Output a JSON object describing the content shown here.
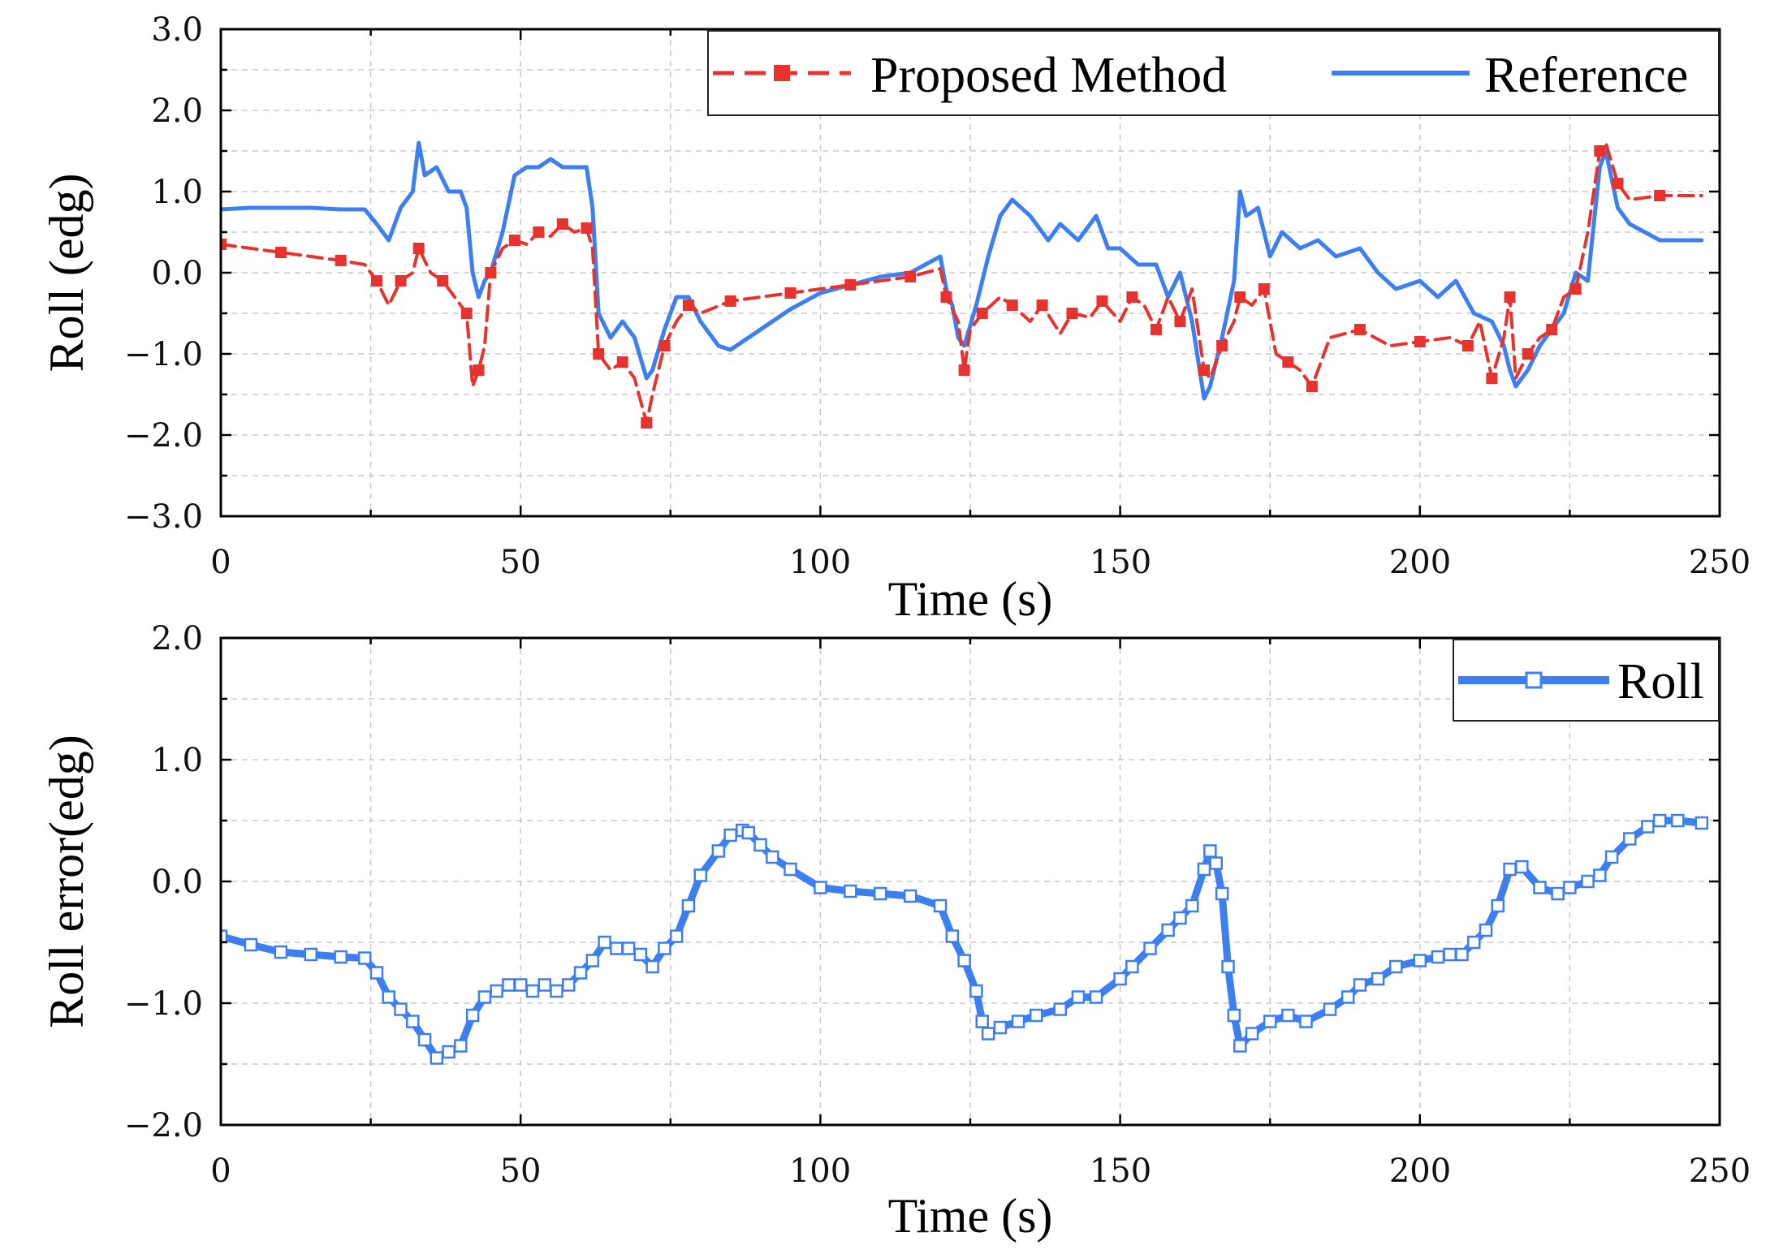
{
  "chart_data": [
    {
      "type": "line",
      "xlabel": "Time (s)",
      "ylabel": "Roll (edg)",
      "xlim": [
        0,
        250
      ],
      "ylim": [
        -3,
        3
      ],
      "xticks": [
        0,
        50,
        100,
        150,
        200,
        250
      ],
      "xtick_labels": [
        "0",
        "50",
        "100",
        "150",
        "200",
        "250"
      ],
      "yticks": [
        3,
        2,
        1,
        0,
        -1,
        -2,
        -3
      ],
      "ytick_labels": [
        "3.0",
        "2.0",
        "1.0",
        "0.0",
        "−1.0",
        "−2.0",
        "−3.0"
      ],
      "grid": true,
      "legend_position": "top-right",
      "series": [
        {
          "name": "Proposed Method",
          "style": "dashed-square-marker",
          "color": "#e8322d",
          "x": [
            0,
            5,
            10,
            15,
            20,
            24,
            26,
            28,
            30,
            32,
            33,
            35,
            37,
            39,
            41,
            42,
            43,
            44,
            45,
            47,
            49,
            51,
            53,
            55,
            57,
            59,
            61,
            62,
            63,
            65,
            67,
            69,
            71,
            72,
            74,
            76,
            78,
            80,
            85,
            90,
            95,
            100,
            105,
            110,
            115,
            120,
            121,
            123,
            124,
            125,
            127,
            130,
            132,
            135,
            137,
            140,
            142,
            145,
            147,
            150,
            152,
            154,
            156,
            158,
            160,
            162,
            164,
            165,
            167,
            169,
            170,
            172,
            174,
            176,
            178,
            180,
            182,
            185,
            190,
            195,
            200,
            205,
            208,
            210,
            212,
            214,
            215,
            216,
            218,
            220,
            222,
            224,
            226,
            228,
            230,
            231,
            233,
            235,
            240,
            247
          ],
          "y": [
            0.35,
            0.3,
            0.25,
            0.2,
            0.15,
            0.1,
            -0.1,
            -0.4,
            -0.1,
            0.0,
            0.3,
            0.0,
            -0.1,
            -0.3,
            -0.5,
            -1.4,
            -1.2,
            -0.9,
            0.0,
            0.3,
            0.4,
            0.35,
            0.5,
            0.45,
            0.6,
            0.5,
            0.55,
            0.3,
            -1.0,
            -1.2,
            -1.1,
            -1.3,
            -1.85,
            -1.5,
            -0.9,
            -0.6,
            -0.4,
            -0.5,
            -0.35,
            -0.3,
            -0.25,
            -0.2,
            -0.15,
            -0.1,
            -0.05,
            0.05,
            -0.3,
            -0.6,
            -1.2,
            -0.7,
            -0.5,
            -0.3,
            -0.4,
            -0.6,
            -0.4,
            -0.75,
            -0.5,
            -0.55,
            -0.35,
            -0.6,
            -0.3,
            -0.4,
            -0.7,
            -0.3,
            -0.6,
            -0.2,
            -1.2,
            -1.3,
            -0.9,
            -0.6,
            -0.3,
            -0.4,
            -0.2,
            -1.0,
            -1.1,
            -1.2,
            -1.4,
            -0.8,
            -0.7,
            -0.9,
            -0.85,
            -0.8,
            -0.9,
            -0.6,
            -1.3,
            -0.8,
            -0.3,
            -1.3,
            -1.0,
            -0.8,
            -0.7,
            -0.3,
            -0.2,
            0.5,
            1.5,
            1.6,
            1.1,
            0.9,
            0.95,
            0.95
          ]
        },
        {
          "name": "Reference",
          "style": "solid",
          "color": "#3d7ef0",
          "x": [
            0,
            5,
            10,
            15,
            20,
            24,
            26,
            28,
            30,
            32,
            33,
            34,
            36,
            38,
            40,
            41,
            42,
            43,
            44,
            45,
            47,
            49,
            51,
            53,
            55,
            57,
            59,
            61,
            62,
            63,
            65,
            67,
            69,
            71,
            72,
            74,
            76,
            78,
            80,
            83,
            85,
            90,
            95,
            100,
            105,
            110,
            115,
            120,
            121,
            122,
            123,
            124,
            126,
            128,
            130,
            132,
            135,
            138,
            140,
            143,
            146,
            148,
            150,
            153,
            156,
            158,
            160,
            162,
            164,
            165,
            167,
            169,
            170,
            171,
            173,
            175,
            177,
            180,
            183,
            186,
            190,
            193,
            196,
            200,
            203,
            206,
            209,
            212,
            214,
            215,
            216,
            218,
            220,
            222,
            224,
            226,
            228,
            230,
            231,
            233,
            235,
            240,
            247
          ],
          "y": [
            0.78,
            0.8,
            0.8,
            0.8,
            0.78,
            0.78,
            0.6,
            0.4,
            0.8,
            1.0,
            1.6,
            1.2,
            1.3,
            1.0,
            1.0,
            0.8,
            0.0,
            -0.3,
            -0.1,
            0.0,
            0.5,
            1.2,
            1.3,
            1.3,
            1.4,
            1.3,
            1.3,
            1.3,
            0.8,
            -0.5,
            -0.8,
            -0.6,
            -0.8,
            -1.3,
            -1.2,
            -0.7,
            -0.3,
            -0.3,
            -0.6,
            -0.9,
            -0.95,
            -0.7,
            -0.45,
            -0.25,
            -0.15,
            -0.05,
            0.0,
            0.2,
            -0.2,
            -0.4,
            -0.8,
            -0.9,
            -0.4,
            0.2,
            0.7,
            0.9,
            0.7,
            0.4,
            0.6,
            0.4,
            0.7,
            0.3,
            0.3,
            0.1,
            0.1,
            -0.3,
            0.0,
            -0.6,
            -1.55,
            -1.4,
            -0.8,
            -0.1,
            1.0,
            0.7,
            0.8,
            0.2,
            0.5,
            0.3,
            0.4,
            0.2,
            0.3,
            0.0,
            -0.2,
            -0.1,
            -0.3,
            -0.1,
            -0.5,
            -0.6,
            -0.9,
            -1.2,
            -1.4,
            -1.2,
            -0.9,
            -0.7,
            -0.5,
            0.0,
            -0.1,
            1.3,
            1.5,
            0.8,
            0.6,
            0.4,
            0.4
          ]
        }
      ]
    },
    {
      "type": "line",
      "xlabel": "Time (s)",
      "ylabel": "Roll error(edg)",
      "xlim": [
        0,
        250
      ],
      "ylim": [
        -2,
        2
      ],
      "xticks": [
        0,
        50,
        100,
        150,
        200,
        250
      ],
      "xtick_labels": [
        "0",
        "50",
        "100",
        "150",
        "200",
        "250"
      ],
      "yticks": [
        2,
        1,
        0,
        -1,
        -2
      ],
      "ytick_labels": [
        "2.0",
        "1.0",
        "0.0",
        "−1.0",
        "−2.0"
      ],
      "grid": true,
      "legend_position": "top-right",
      "series": [
        {
          "name": "Roll",
          "style": "solid-open-square-marker",
          "color": "#3d7ef0",
          "x": [
            0,
            5,
            10,
            15,
            20,
            24,
            26,
            28,
            30,
            32,
            34,
            36,
            38,
            40,
            42,
            44,
            46,
            48,
            50,
            52,
            54,
            56,
            58,
            60,
            62,
            64,
            66,
            68,
            70,
            72,
            74,
            76,
            78,
            80,
            83,
            85,
            87,
            88,
            90,
            92,
            95,
            100,
            105,
            110,
            115,
            120,
            122,
            124,
            126,
            127,
            128,
            130,
            133,
            136,
            140,
            143,
            146,
            150,
            152,
            155,
            158,
            160,
            162,
            164,
            165,
            166,
            167,
            168,
            169,
            170,
            172,
            175,
            178,
            181,
            185,
            188,
            190,
            193,
            196,
            200,
            203,
            205,
            207,
            209,
            211,
            213,
            215,
            217,
            220,
            223,
            225,
            228,
            230,
            232,
            235,
            238,
            240,
            243,
            247
          ],
          "y": [
            -0.45,
            -0.52,
            -0.58,
            -0.6,
            -0.62,
            -0.63,
            -0.75,
            -0.95,
            -1.05,
            -1.15,
            -1.3,
            -1.45,
            -1.4,
            -1.35,
            -1.1,
            -0.95,
            -0.9,
            -0.85,
            -0.85,
            -0.9,
            -0.85,
            -0.9,
            -0.85,
            -0.75,
            -0.65,
            -0.5,
            -0.55,
            -0.55,
            -0.6,
            -0.7,
            -0.55,
            -0.45,
            -0.2,
            0.05,
            0.25,
            0.38,
            0.42,
            0.4,
            0.3,
            0.2,
            0.1,
            -0.05,
            -0.08,
            -0.1,
            -0.12,
            -0.2,
            -0.45,
            -0.65,
            -0.9,
            -1.15,
            -1.25,
            -1.2,
            -1.15,
            -1.1,
            -1.05,
            -0.95,
            -0.95,
            -0.8,
            -0.7,
            -0.55,
            -0.4,
            -0.3,
            -0.2,
            0.1,
            0.25,
            0.15,
            -0.1,
            -0.7,
            -1.1,
            -1.35,
            -1.25,
            -1.15,
            -1.1,
            -1.15,
            -1.05,
            -0.95,
            -0.85,
            -0.8,
            -0.7,
            -0.65,
            -0.62,
            -0.6,
            -0.6,
            -0.5,
            -0.4,
            -0.2,
            0.1,
            0.12,
            -0.05,
            -0.1,
            -0.05,
            0.0,
            0.05,
            0.2,
            0.35,
            0.45,
            0.5,
            0.5,
            0.48
          ]
        }
      ]
    }
  ]
}
